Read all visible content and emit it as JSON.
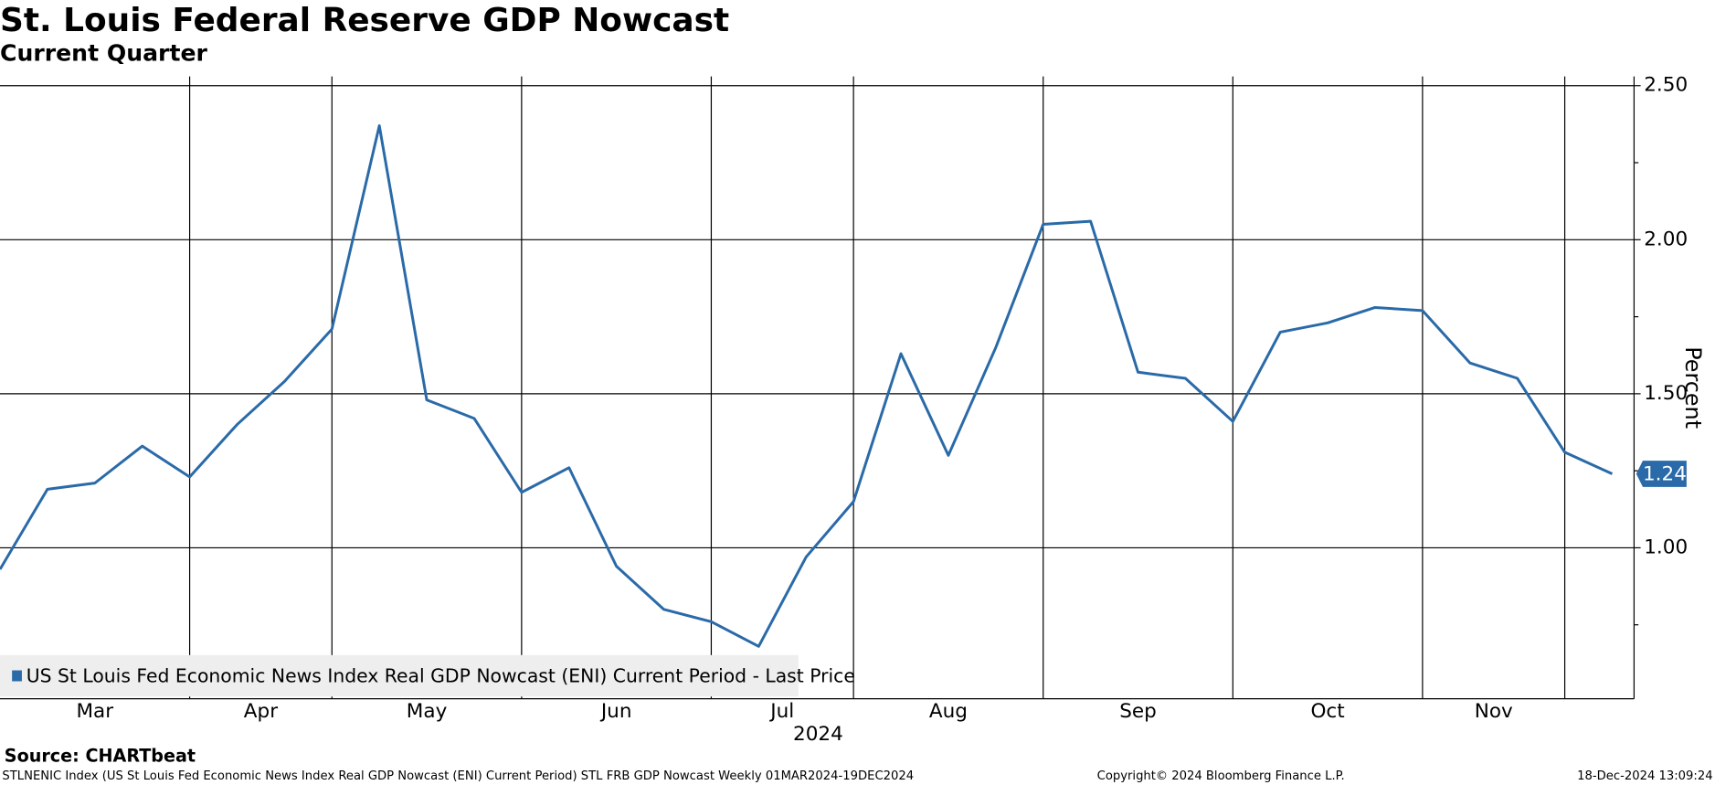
{
  "chart_data": {
    "type": "line",
    "title": "St. Louis Federal Reserve GDP Nowcast",
    "subtitle": "Current Quarter",
    "y_label": "Percent",
    "year_label": "2024",
    "categories": [
      "Mar",
      null,
      null,
      null,
      "Apr",
      null,
      null,
      "May",
      null,
      null,
      null,
      "Jun",
      null,
      null,
      null,
      "Jul",
      null,
      null,
      "Aug",
      null,
      null,
      null,
      "Sep",
      null,
      null,
      null,
      "Oct",
      null,
      null,
      null,
      "Nov",
      null,
      null,
      null,
      null
    ],
    "xticks": [
      4,
      7,
      11,
      15,
      18,
      22,
      26,
      30,
      33
    ],
    "series": [
      {
        "name": "US St Louis Fed Economic News Index Real GDP Nowcast (ENI) Current Period - Last Price",
        "color": "#2a6aa8",
        "values": [
          0.93,
          1.19,
          1.21,
          1.33,
          1.23,
          1.4,
          1.54,
          1.71,
          2.37,
          1.48,
          1.42,
          1.18,
          1.26,
          0.94,
          0.8,
          0.76,
          0.68,
          0.97,
          1.15,
          1.63,
          1.3,
          1.65,
          2.05,
          2.06,
          1.57,
          1.55,
          1.41,
          1.7,
          1.73,
          1.78,
          1.77,
          1.6,
          1.55,
          1.31,
          1.24
        ]
      }
    ],
    "ylim": [
      0.51,
      2.53
    ],
    "yticks": [
      {
        "value": 1.0,
        "label": "1.00"
      },
      {
        "value": 1.5,
        "label": "1.50"
      },
      {
        "value": 2.0,
        "label": "2.00"
      },
      {
        "value": 2.5,
        "label": "2.50"
      }
    ],
    "yticks_minor": [
      0.75,
      1.25,
      1.75,
      2.25
    ],
    "grid": true,
    "source": "Source: CHARTbeat",
    "footer_left": "STLNENIC Index (US St Louis Fed Economic News Index Real GDP Nowcast (ENI) Current Period) STL FRB GDP Nowcast  Weekly 01MAR2024-19DEC2024",
    "footer_center": "Copyright© 2024 Bloomberg Finance L.P.",
    "footer_right": "18-Dec-2024 13:09:24"
  }
}
